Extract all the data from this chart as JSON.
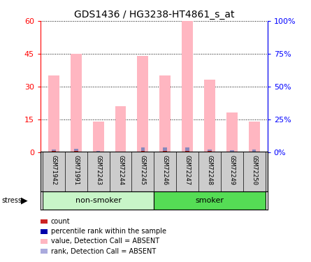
{
  "title": "GDS1436 / HG3238-HT4861_s_at",
  "samples": [
    "GSM71942",
    "GSM71991",
    "GSM72243",
    "GSM72244",
    "GSM72245",
    "GSM72246",
    "GSM72247",
    "GSM72248",
    "GSM72249",
    "GSM72250"
  ],
  "pink_values": [
    35,
    45,
    14,
    21,
    44,
    35,
    60,
    33,
    18,
    14
  ],
  "blue_values": [
    1.0,
    1.5,
    0.5,
    0.3,
    2.0,
    2.0,
    2.0,
    1.0,
    0.7,
    1.0
  ],
  "red_values": [
    0.5,
    0.5,
    0.3,
    0.3,
    0.5,
    0.5,
    0.5,
    0.5,
    0.3,
    0.3
  ],
  "ylim_left": [
    0,
    60
  ],
  "ylim_right": [
    0,
    100
  ],
  "yticks_left": [
    0,
    15,
    30,
    45,
    60
  ],
  "yticks_right": [
    0,
    25,
    50,
    75,
    100
  ],
  "ytick_labels_left": [
    "0",
    "15",
    "30",
    "45",
    "60"
  ],
  "ytick_labels_right": [
    "0",
    "25",
    "50",
    "75",
    "100%"
  ],
  "groups": [
    {
      "label": "non-smoker",
      "start": 0,
      "end": 5,
      "color": "#C8F5C8"
    },
    {
      "label": "smoker",
      "start": 5,
      "end": 10,
      "color": "#55DD55"
    }
  ],
  "bar_width": 0.5,
  "pink_color": "#FFB6C1",
  "blue_color": "#8888BB",
  "red_color": "#CC2222",
  "tick_label_area_color": "#CCCCCC",
  "legend_items": [
    {
      "label": "count",
      "color": "#CC2222"
    },
    {
      "label": "percentile rank within the sample",
      "color": "#0000AA"
    },
    {
      "label": "value, Detection Call = ABSENT",
      "color": "#FFB6C1"
    },
    {
      "label": "rank, Detection Call = ABSENT",
      "color": "#AAAADD"
    }
  ]
}
